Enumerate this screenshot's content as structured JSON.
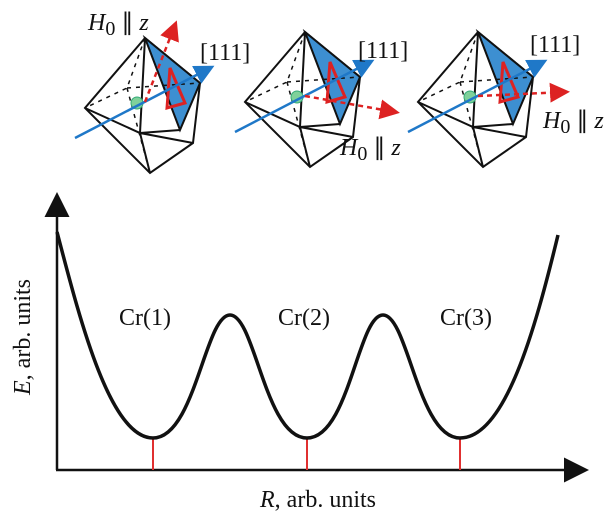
{
  "octahedra": [
    {
      "field": {
        "symbol": "H",
        "subscript": "0",
        "rest": " ∥ ",
        "axis": "z"
      },
      "direction": "[111]"
    },
    {
      "field": {
        "symbol": "H",
        "subscript": "0",
        "rest": " ∥ ",
        "axis": "z"
      },
      "direction": "[111]"
    },
    {
      "field": {
        "symbol": "H",
        "subscript": "0",
        "rest": " ∥ ",
        "axis": "z"
      },
      "direction": "[111]"
    }
  ],
  "wells": [
    "Cr(1)",
    "Cr(2)",
    "Cr(3)"
  ],
  "y_axis": {
    "symbol": "E",
    "text": ", arb. units"
  },
  "x_axis": {
    "symbol": "R",
    "text": ", arb. units"
  }
}
